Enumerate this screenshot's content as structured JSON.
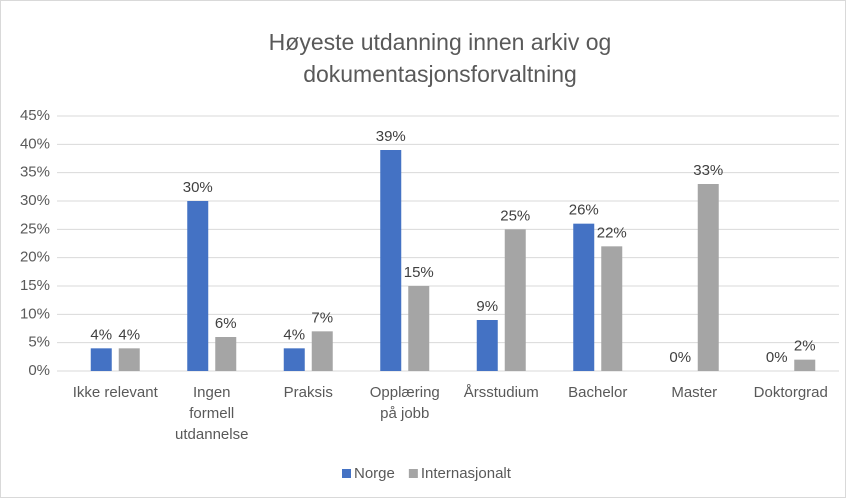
{
  "chart_data": {
    "type": "bar",
    "title": [
      "Høyeste utdanning innen arkiv og",
      "dokumentasjonsforvaltning"
    ],
    "categories": [
      [
        "Ikke relevant"
      ],
      [
        "Ingen",
        "formell",
        "utdannelse"
      ],
      [
        "Praksis"
      ],
      [
        "Opplæring",
        "på jobb"
      ],
      [
        "Årsstudium"
      ],
      [
        "Bachelor"
      ],
      [
        "Master"
      ],
      [
        "Doktorgrad"
      ]
    ],
    "series": [
      {
        "name": "Norge",
        "color": "#4472c4",
        "values": [
          4,
          30,
          4,
          39,
          9,
          26,
          0,
          0
        ],
        "value_labels": [
          "4%",
          "30%",
          "4%",
          "39%",
          "9%",
          "26%",
          "0%",
          "0%"
        ]
      },
      {
        "name": "Internasjonalt",
        "color": "#a5a5a5",
        "values": [
          4,
          6,
          7,
          15,
          25,
          22,
          33,
          2
        ],
        "value_labels": [
          "4%",
          "6%",
          "7%",
          "15%",
          "25%",
          "22%",
          "33%",
          "2%"
        ]
      }
    ],
    "ylim": [
      0,
      45
    ],
    "yticks": [
      {
        "value": 0,
        "label": "0%"
      },
      {
        "value": 5,
        "label": "5%"
      },
      {
        "value": 10,
        "label": "10%"
      },
      {
        "value": 15,
        "label": "15%"
      },
      {
        "value": 20,
        "label": "20%"
      },
      {
        "value": 25,
        "label": "25%"
      },
      {
        "value": 30,
        "label": "30%"
      },
      {
        "value": 35,
        "label": "35%"
      },
      {
        "value": 40,
        "label": "40%"
      },
      {
        "value": 45,
        "label": "45%"
      }
    ],
    "grid": true,
    "legend": "bottom"
  }
}
